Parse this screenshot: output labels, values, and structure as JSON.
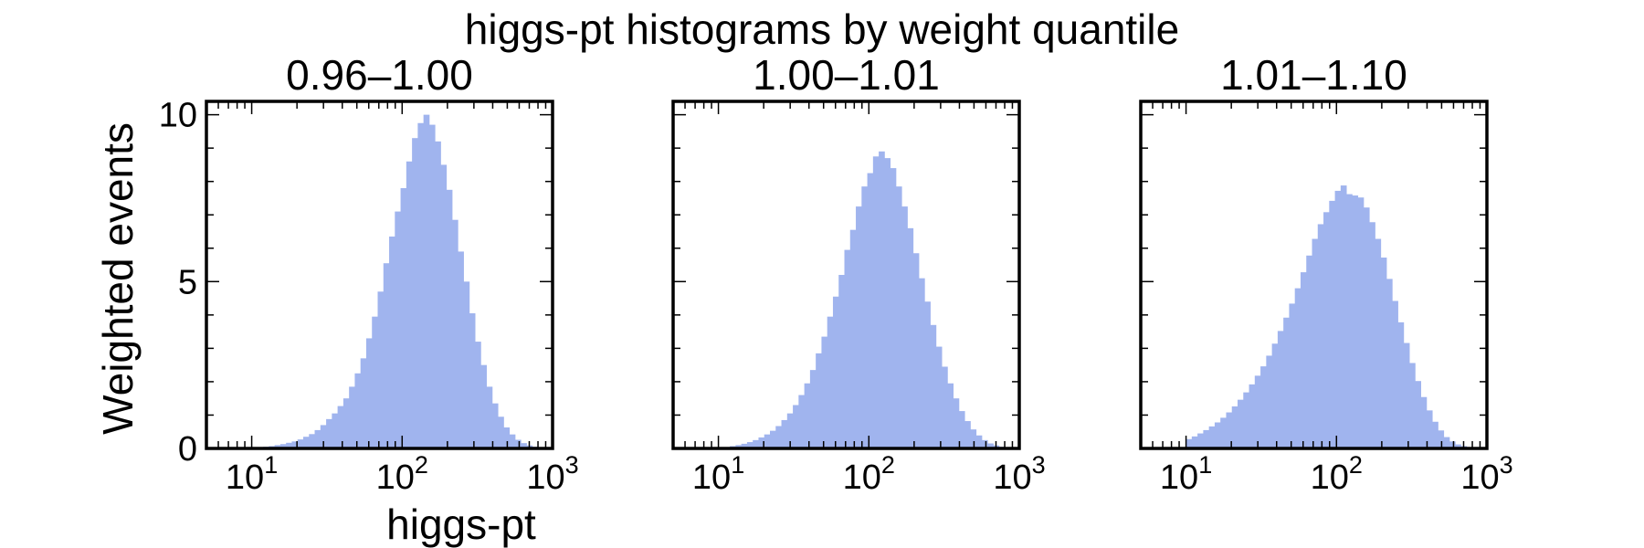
{
  "chart_data": {
    "type": "bar",
    "title": "higgs-pt histograms by weight quantile",
    "xlabel": "higgs-pt",
    "ylabel": "Weighted events",
    "x_scale": "log",
    "xlim": [
      5,
      1000
    ],
    "ylim": [
      0,
      10.4
    ],
    "x_ticks": [
      {
        "base": "10",
        "exp": "1"
      },
      {
        "base": "10",
        "exp": "2"
      },
      {
        "base": "10",
        "exp": "3"
      }
    ],
    "y_ticks": [
      "0",
      "5",
      "10"
    ],
    "bar_color": "#a0b4ee",
    "grid": false,
    "legend": "none",
    "panels": [
      {
        "title": "0.96–1.00",
        "values": [
          0.02,
          0.03,
          0.05,
          0.07,
          0.1,
          0.13,
          0.17,
          0.21,
          0.27,
          0.35,
          0.43,
          0.55,
          0.7,
          0.88,
          1.05,
          1.27,
          1.5,
          1.85,
          2.25,
          2.7,
          3.3,
          3.95,
          4.7,
          5.55,
          6.35,
          7.1,
          7.8,
          8.6,
          9.3,
          9.75,
          10.0,
          9.7,
          9.2,
          8.5,
          7.75,
          6.85,
          5.9,
          5.0,
          4.05,
          3.2,
          2.5,
          1.85,
          1.35,
          0.95,
          0.63,
          0.42,
          0.26,
          0.16,
          0.09,
          0.05
        ]
      },
      {
        "title": "1.00–1.01",
        "values": [
          0.02,
          0.04,
          0.07,
          0.1,
          0.14,
          0.19,
          0.25,
          0.33,
          0.42,
          0.53,
          0.67,
          0.85,
          1.05,
          1.3,
          1.6,
          1.95,
          2.35,
          2.85,
          3.35,
          3.95,
          4.55,
          5.2,
          5.95,
          6.55,
          7.25,
          7.85,
          8.25,
          8.75,
          8.9,
          8.7,
          8.4,
          7.85,
          7.25,
          6.6,
          5.85,
          5.1,
          4.4,
          3.7,
          3.05,
          2.45,
          1.95,
          1.5,
          1.12,
          0.82,
          0.57,
          0.39,
          0.25,
          0.15,
          0.09,
          0.05
        ]
      },
      {
        "title": "1.01–1.10",
        "values": [
          0.28,
          0.36,
          0.45,
          0.55,
          0.66,
          0.78,
          0.92,
          1.08,
          1.26,
          1.46,
          1.68,
          1.92,
          2.18,
          2.46,
          2.78,
          3.14,
          3.52,
          3.92,
          4.34,
          4.8,
          5.28,
          5.78,
          6.28,
          6.72,
          7.08,
          7.42,
          7.72,
          7.88,
          7.62,
          7.58,
          7.52,
          7.22,
          6.78,
          6.28,
          5.72,
          5.08,
          4.42,
          3.78,
          3.16,
          2.56,
          2.02,
          1.54,
          1.14,
          0.8,
          0.54,
          0.34,
          0.21,
          0.12,
          0.07,
          0.04
        ]
      }
    ]
  }
}
